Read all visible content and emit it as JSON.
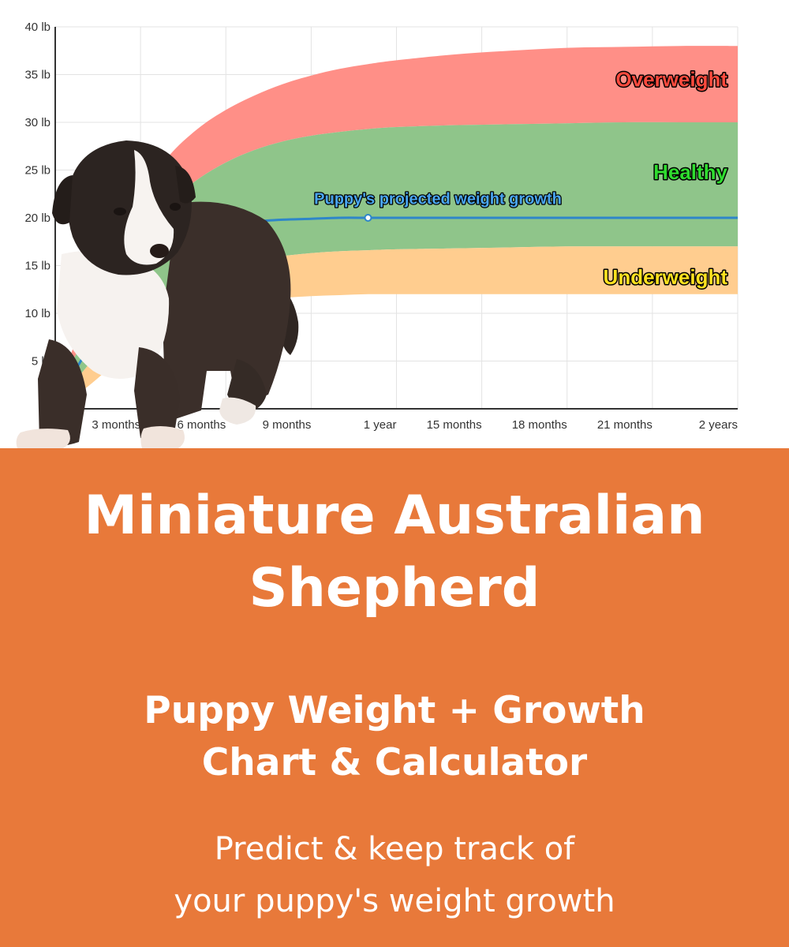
{
  "chart_data": {
    "type": "area",
    "xlabel": "",
    "ylabel": "",
    "x_tick_labels": [
      {
        "months": 3,
        "label": "3 months"
      },
      {
        "months": 6,
        "label": "6 months"
      },
      {
        "months": 9,
        "label": "9 months"
      },
      {
        "months": 12,
        "label": "1 year"
      },
      {
        "months": 15,
        "label": "15 months"
      },
      {
        "months": 18,
        "label": "18 months"
      },
      {
        "months": 21,
        "label": "21 months"
      },
      {
        "months": 24,
        "label": "2 years"
      }
    ],
    "y_tick_labels": [
      {
        "value": 0,
        "label": "0"
      },
      {
        "value": 5,
        "label": "5 lb"
      },
      {
        "value": 10,
        "label": "10 lb"
      },
      {
        "value": 15,
        "label": "15 lb"
      },
      {
        "value": 20,
        "label": "20 lb"
      },
      {
        "value": 25,
        "label": "25 lb"
      },
      {
        "value": 30,
        "label": "30 lb"
      },
      {
        "value": 35,
        "label": "35 lb"
      },
      {
        "value": 40,
        "label": "40 lb"
      }
    ],
    "xlim": [
      0,
      24
    ],
    "ylim": [
      0,
      40
    ],
    "grid": true,
    "x_months": [
      0,
      1,
      2,
      3,
      4,
      5,
      6,
      7,
      8,
      9,
      10,
      11,
      12,
      14,
      16,
      18,
      20,
      22,
      24
    ],
    "bands": [
      {
        "name": "Overweight",
        "color": "#ff8f87",
        "label_color": "#ff4a3d",
        "upper": [
          0.8,
          9.5,
          17,
          22.5,
          26.5,
          29.3,
          31.3,
          32.8,
          34,
          34.9,
          35.6,
          36.1,
          36.5,
          37.1,
          37.5,
          37.8,
          37.9,
          38,
          38
        ],
        "lower": [
          0.6,
          7.5,
          13.5,
          18,
          21.5,
          24,
          25.8,
          27.1,
          28,
          28.6,
          29,
          29.3,
          29.5,
          29.7,
          29.8,
          29.9,
          30,
          30,
          30
        ]
      },
      {
        "name": "Healthy",
        "color": "#8fc58a",
        "label_color": "#2fdc2f",
        "upper": [
          0.6,
          7.5,
          13.5,
          18,
          21.5,
          24,
          25.8,
          27.1,
          28,
          28.6,
          29,
          29.3,
          29.5,
          29.7,
          29.8,
          29.9,
          30,
          30,
          30
        ],
        "lower": [
          0.3,
          4,
          7.5,
          10.5,
          12.5,
          14,
          15,
          15.6,
          16,
          16.3,
          16.5,
          16.6,
          16.7,
          16.8,
          16.9,
          17,
          17,
          17,
          17
        ]
      },
      {
        "name": "Underweight",
        "color": "#ffcd8f",
        "label_color": "#ffe11f",
        "upper": [
          0.3,
          4,
          7.5,
          10.5,
          12.5,
          14,
          15,
          15.6,
          16,
          16.3,
          16.5,
          16.6,
          16.7,
          16.8,
          16.9,
          17,
          17,
          17,
          17
        ],
        "lower": [
          0.1,
          2,
          4.5,
          7,
          8.8,
          10,
          10.8,
          11.3,
          11.6,
          11.8,
          11.9,
          12,
          12,
          12,
          12,
          12,
          12,
          12,
          12
        ]
      }
    ],
    "series": [
      {
        "name": "Puppy's projected weight growth",
        "color": "#2e86c9",
        "label_color": "#4aa6f0",
        "values": [
          0.4,
          5.5,
          10.2,
          14,
          16.8,
          18.4,
          19.2,
          19.6,
          19.8,
          19.9,
          20,
          20,
          20,
          20,
          20,
          20,
          20,
          20,
          20
        ],
        "marker_months": 11
      }
    ]
  },
  "banner": {
    "title_lines": [
      "Miniature Australian",
      "Shepherd"
    ],
    "subtitle_lines": [
      "Puppy Weight + Growth",
      "Chart & Calculator"
    ],
    "tagline_lines": [
      "Predict & keep track of",
      "your puppy's weight growth"
    ],
    "background_color": "#e8793a"
  }
}
